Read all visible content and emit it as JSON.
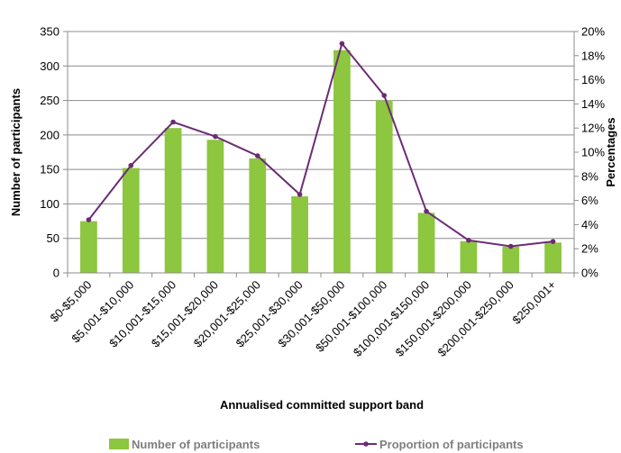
{
  "chart_data": {
    "type": "bar",
    "categories": [
      "$0-$5,000",
      "$5,001-$10,000",
      "$10,001-$15,000",
      "$15,001-$20,000",
      "$20,001-$25,000",
      "$25,001-$30,000",
      "$30,001-$50,000",
      "$50,001-$100,000",
      "$100,001-$150,000",
      "$150,001-$200,000",
      "$200,001-$250,000",
      "$250,001+"
    ],
    "series": [
      {
        "name": "Number of participants",
        "type": "bar",
        "axis": "left",
        "color": "#8dc63f",
        "values": [
          75,
          152,
          210,
          193,
          166,
          111,
          323,
          250,
          87,
          46,
          38,
          44
        ]
      },
      {
        "name": "Proportion of participants",
        "type": "line",
        "axis": "right",
        "color": "#6b2c74",
        "values": [
          4.4,
          8.9,
          12.5,
          11.3,
          9.7,
          6.5,
          19.0,
          14.7,
          5.1,
          2.7,
          2.2,
          2.6
        ]
      }
    ],
    "xlabel": "Annualised committed support band",
    "ylabel": "Number of participants",
    "y2label": "Percentages",
    "ylim": [
      0,
      350
    ],
    "y_ticks": [
      "0",
      "50",
      "100",
      "150",
      "200",
      "250",
      "300",
      "350"
    ],
    "y2lim": [
      0,
      20
    ],
    "y2_ticks": [
      "0%",
      "2%",
      "4%",
      "6%",
      "8%",
      "10%",
      "12%",
      "14%",
      "16%",
      "18%",
      "20%"
    ],
    "grid": true,
    "legend_position": "bottom"
  }
}
